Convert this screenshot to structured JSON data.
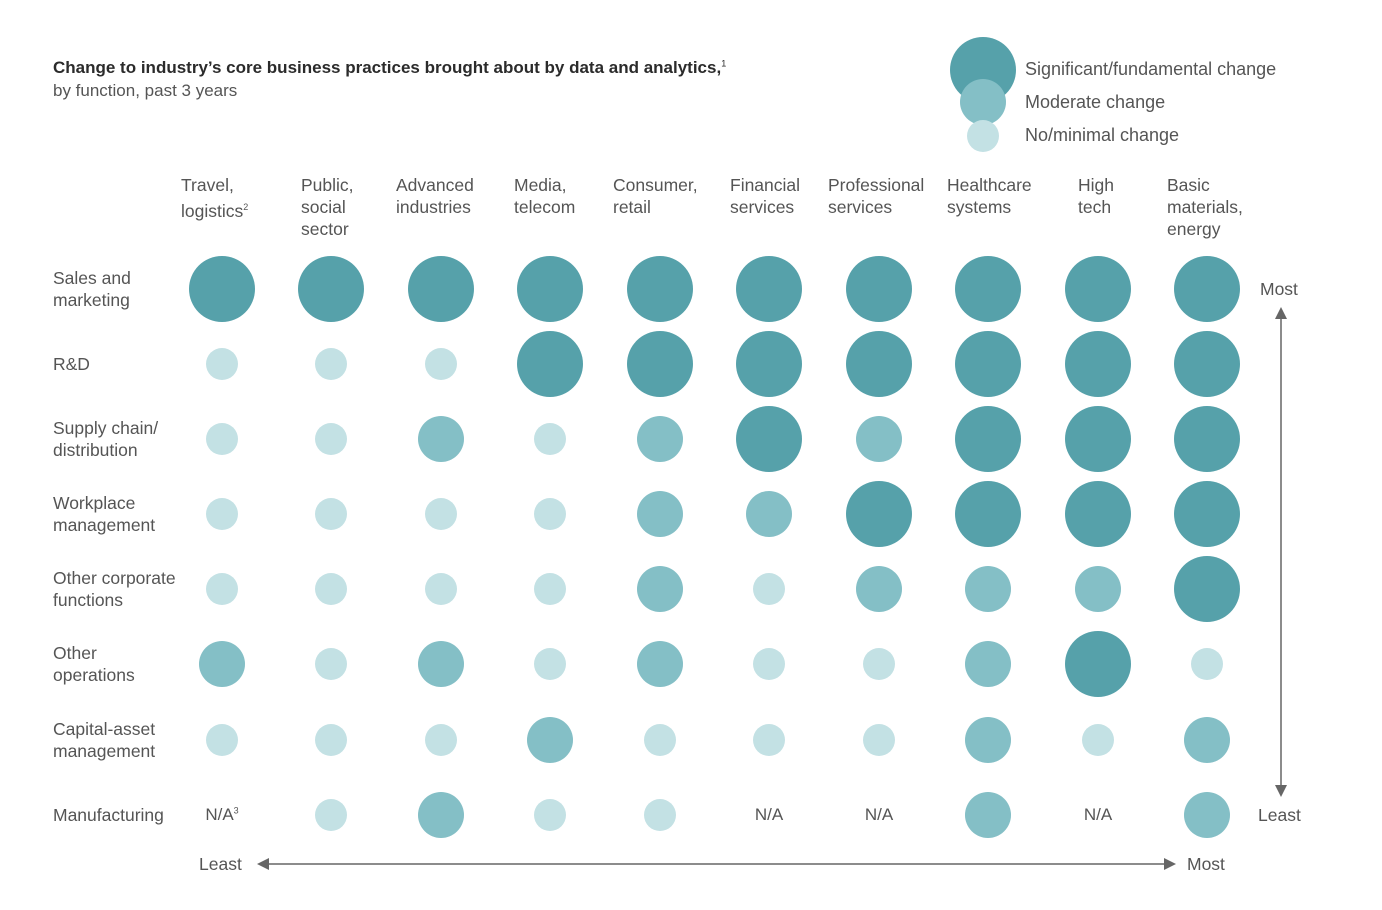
{
  "chart_data": {
    "type": "bubble-matrix",
    "title": "Change to industry’s core business practices brought about by data and analytics,",
    "title_footnote": "1",
    "subtitle": "by function, past 3 years",
    "legend": [
      {
        "level": 3,
        "label": "Significant/fundamental change"
      },
      {
        "level": 2,
        "label": "Moderate change"
      },
      {
        "level": 1,
        "label": "No/minimal change"
      }
    ],
    "columns": [
      {
        "label": [
          "Travel,",
          "logistics"
        ],
        "footnote": "2"
      },
      {
        "label": [
          "Public,",
          "social",
          "sector"
        ]
      },
      {
        "label": [
          "Advanced",
          "industries"
        ]
      },
      {
        "label": [
          "Media,",
          "telecom"
        ]
      },
      {
        "label": [
          "Consumer,",
          "retail"
        ]
      },
      {
        "label": [
          "Financial",
          "services"
        ]
      },
      {
        "label": [
          "Professional",
          "services"
        ]
      },
      {
        "label": [
          "Healthcare",
          "systems"
        ]
      },
      {
        "label": [
          "High",
          "tech"
        ]
      },
      {
        "label": [
          "Basic",
          "materials,",
          "energy"
        ]
      }
    ],
    "rows": [
      {
        "label": [
          "Sales and",
          "marketing"
        ],
        "values": [
          3,
          3,
          3,
          3,
          3,
          3,
          3,
          3,
          3,
          3
        ]
      },
      {
        "label": [
          "R&D"
        ],
        "values": [
          1,
          1,
          1,
          3,
          3,
          3,
          3,
          3,
          3,
          3
        ]
      },
      {
        "label": [
          "Supply chain/",
          "distribution"
        ],
        "values": [
          1,
          1,
          2,
          1,
          2,
          3,
          2,
          3,
          3,
          3
        ]
      },
      {
        "label": [
          "Workplace",
          "management"
        ],
        "values": [
          1,
          1,
          1,
          1,
          2,
          2,
          3,
          3,
          3,
          3
        ]
      },
      {
        "label": [
          "Other corporate",
          "functions"
        ],
        "values": [
          1,
          1,
          1,
          1,
          2,
          1,
          2,
          2,
          2,
          3
        ]
      },
      {
        "label": [
          "Other",
          "operations"
        ],
        "values": [
          2,
          1,
          2,
          1,
          2,
          1,
          1,
          2,
          3,
          1
        ]
      },
      {
        "label": [
          "Capital-asset",
          "management"
        ],
        "values": [
          1,
          1,
          1,
          2,
          1,
          1,
          1,
          2,
          1,
          2
        ]
      },
      {
        "label": [
          "Manufacturing"
        ],
        "values": [
          "N/A",
          1,
          2,
          1,
          1,
          "N/A",
          "N/A",
          2,
          "N/A",
          2
        ]
      }
    ],
    "na_label": "N/A",
    "na_footnote": "3",
    "y_axis": {
      "top": "Most",
      "bottom": "Least"
    },
    "x_axis": {
      "left": "Least",
      "right": "Most"
    },
    "colors": {
      "level3": "#56a1aa",
      "level2": "#84bfc6",
      "level1": "#c3e1e4",
      "axis": "#666666"
    }
  }
}
